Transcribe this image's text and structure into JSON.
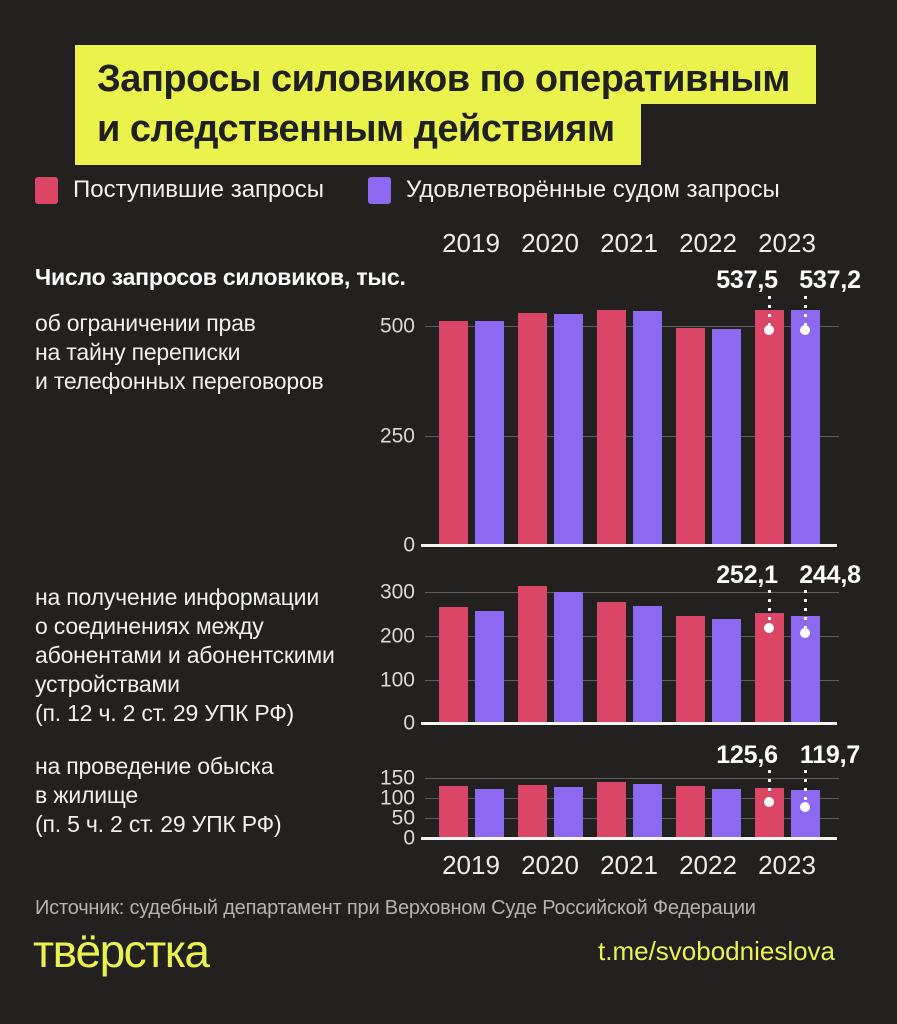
{
  "title": {
    "line1": "Запросы силовиков по оперативным",
    "line2": "и следственным действиям"
  },
  "legend": {
    "received": "Поступившие запросы",
    "granted": "Удовлетворённые судом запросы"
  },
  "colors": {
    "background": "#222120",
    "accent_yellow": "#eaf34c",
    "received_bar": "#db4566",
    "granted_bar": "#8c69f0"
  },
  "years": [
    "2019",
    "2020",
    "2021",
    "2022",
    "2023"
  ],
  "unit_label": "Число запросов силовиков, тыс.",
  "source": "Источник: судебный департамент при Верховном Суде Российской Федерации",
  "footer": {
    "logo": "твёрстка",
    "link": "t.me/svobodnieslova"
  },
  "chart_data": [
    {
      "type": "bar",
      "label": "об ограничении прав\nна тайну переписки\nи телефонных переговоров",
      "categories": [
        "2019",
        "2020",
        "2021",
        "2022",
        "2023"
      ],
      "series": [
        {
          "name": "Поступившие запросы",
          "values": [
            513,
            531,
            538,
            495,
            537.5
          ]
        },
        {
          "name": "Удовлетворённые судом запросы",
          "values": [
            511,
            528,
            536,
            493,
            537.2
          ]
        }
      ],
      "ylim": [
        0,
        560
      ],
      "yticks": [
        500,
        250,
        0
      ],
      "grid": true,
      "legend_position": "top",
      "callout": {
        "labels": [
          "537,5",
          "537,2"
        ],
        "label_top": -34,
        "line_start": -4,
        "dot_offsets": [
          30,
          30
        ]
      }
    },
    {
      "type": "bar",
      "label": "на получение информации\nо соединениях между\nабонентами и абонентскими\nустройствами\n (п. 12  ч. 2 ст. 29 УПК РФ)",
      "categories": [
        "2019",
        "2020",
        "2021",
        "2022",
        "2023"
      ],
      "series": [
        {
          "name": "Поступившие запросы",
          "values": [
            266,
            314,
            277,
            245,
            252.1
          ]
        },
        {
          "name": "Удовлетворённые судом запросы",
          "values": [
            257,
            302,
            268,
            239,
            244.8
          ]
        }
      ],
      "ylim": [
        0,
        340
      ],
      "yticks": [
        300,
        200,
        100,
        0
      ],
      "grid": true,
      "legend_position": "top",
      "callout": {
        "labels": [
          "252,1",
          "244,8"
        ],
        "label_top": -14,
        "line_start": 15,
        "dot_offsets": [
          53,
          58
        ]
      }
    },
    {
      "type": "bar",
      "label": "на проведение обыска\nв жилище\n(п. 5 ч. 2 ст. 29 УПК РФ)",
      "categories": [
        "2019",
        "2020",
        "2021",
        "2022",
        "2023"
      ],
      "series": [
        {
          "name": "Поступившие запросы",
          "values": [
            129,
            133,
            140,
            129,
            125.6
          ]
        },
        {
          "name": "Удовлетворённые судом запросы",
          "values": [
            123,
            127,
            134,
            123,
            119.7
          ]
        }
      ],
      "ylim": [
        0,
        175
      ],
      "yticks": [
        150,
        100,
        50,
        0
      ],
      "grid": true,
      "legend_position": "top",
      "callout": {
        "labels": [
          "125,6",
          "119,7"
        ],
        "label_top": -27,
        "line_start": 2,
        "dot_offsets": [
          34,
          39
        ]
      }
    }
  ]
}
